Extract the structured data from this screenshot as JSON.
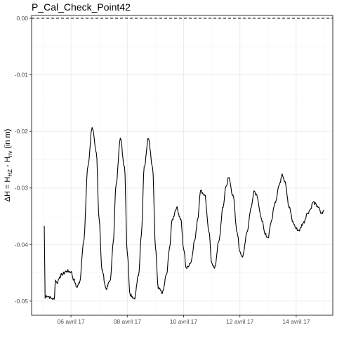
{
  "chart_data": {
    "type": "line",
    "title": "P_Cal_Check_Point42",
    "ylabel_parts": {
      "prefix": "ΔH = H",
      "sub1": "HZ",
      "minus": " - H",
      "sub2": "nv",
      "suffix": " (in m)"
    },
    "xlabel": "",
    "x_range_days": [
      4.6,
      15.3
    ],
    "ylim": [
      -0.0525,
      0.0005
    ],
    "y_ticks": [
      0.0,
      -0.01,
      -0.02,
      -0.03,
      -0.04,
      -0.05
    ],
    "y_tick_labels": [
      "0.00",
      "-0.01",
      "-0.02",
      "-0.03",
      "-0.04",
      "-0.05"
    ],
    "x_ticks": [
      6,
      8,
      10,
      12,
      14
    ],
    "x_tick_labels": [
      "06 avril 17",
      "08 avril 17",
      "10 avril 17",
      "12 avril 17",
      "14 avril 17"
    ],
    "reference_line": {
      "y": 0.0,
      "style": "dashed"
    },
    "grid": true,
    "series": [
      {
        "x": [
          5.05,
          5.08,
          5.12,
          5.2,
          5.3,
          5.4,
          5.45,
          5.5,
          5.6,
          5.7,
          5.85,
          6.0,
          6.1,
          6.2,
          6.3,
          6.45,
          6.6,
          6.75,
          6.9,
          7.0,
          7.1,
          7.25,
          7.4,
          7.5,
          7.6,
          7.75,
          7.9,
          8.0,
          8.1,
          8.25,
          8.4,
          8.5,
          8.6,
          8.75,
          8.9,
          9.0,
          9.1,
          9.25,
          9.4,
          9.5,
          9.6,
          9.75,
          9.9,
          10.0,
          10.1,
          10.25,
          10.4,
          10.5,
          10.6,
          10.75,
          10.9,
          11.0,
          11.1,
          11.25,
          11.4,
          11.5,
          11.6,
          11.75,
          11.9,
          12.0,
          12.1,
          12.25,
          12.4,
          12.5,
          12.6,
          12.75,
          12.9,
          13.0,
          13.1,
          13.25,
          13.4,
          13.5,
          13.6,
          13.75,
          13.9,
          14.0,
          14.1,
          14.25,
          14.4,
          14.5,
          14.6,
          14.75,
          14.9,
          15.0
        ],
        "y": [
          -0.0367,
          -0.0495,
          -0.049,
          -0.0492,
          -0.0495,
          -0.0497,
          -0.0463,
          -0.0468,
          -0.0457,
          -0.0452,
          -0.0447,
          -0.0448,
          -0.0462,
          -0.0475,
          -0.0468,
          -0.0395,
          -0.0262,
          -0.0193,
          -0.0238,
          -0.0355,
          -0.0445,
          -0.0478,
          -0.0462,
          -0.0395,
          -0.0295,
          -0.0212,
          -0.0262,
          -0.0415,
          -0.0488,
          -0.0495,
          -0.0455,
          -0.0382,
          -0.0262,
          -0.0213,
          -0.0265,
          -0.0405,
          -0.0478,
          -0.0485,
          -0.0452,
          -0.0405,
          -0.0355,
          -0.0335,
          -0.0355,
          -0.0408,
          -0.0442,
          -0.0432,
          -0.0392,
          -0.0355,
          -0.0305,
          -0.0312,
          -0.0378,
          -0.0432,
          -0.0442,
          -0.0395,
          -0.0335,
          -0.0298,
          -0.0282,
          -0.0312,
          -0.0378,
          -0.0412,
          -0.0422,
          -0.0378,
          -0.0335,
          -0.0305,
          -0.0312,
          -0.0352,
          -0.0382,
          -0.0388,
          -0.0362,
          -0.0325,
          -0.0295,
          -0.0275,
          -0.0288,
          -0.0335,
          -0.0362,
          -0.0372,
          -0.0375,
          -0.0362,
          -0.0345,
          -0.0338,
          -0.0325,
          -0.0332,
          -0.0345,
          -0.034
        ]
      }
    ]
  }
}
